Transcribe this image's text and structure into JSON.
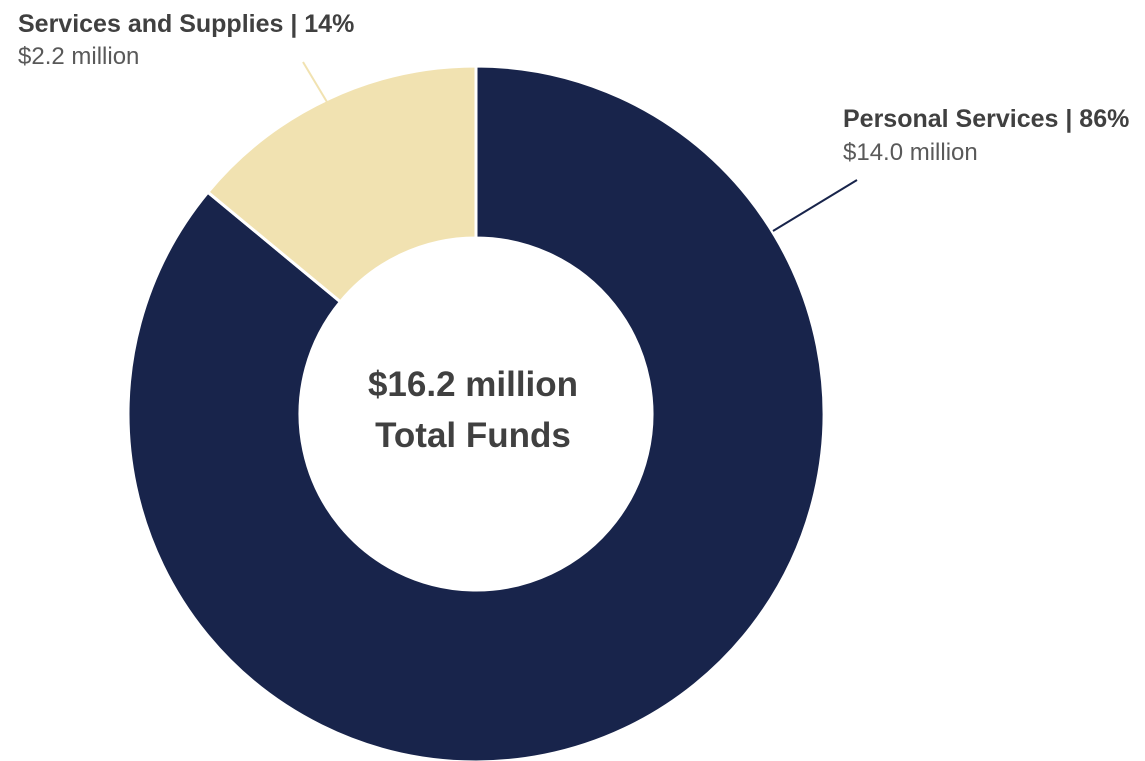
{
  "chart_data": {
    "type": "pie",
    "variant": "donut",
    "slices": [
      {
        "name": "Personal Services",
        "percent": 86,
        "value_label": "$14.0 million",
        "value": 14.0,
        "color": "#18244b"
      },
      {
        "name": "Services and Supplies",
        "percent": 14,
        "value_label": "$2.2 million",
        "value": 2.2,
        "color": "#f1e2b1"
      }
    ],
    "center_label": {
      "line1": "$16.2 million",
      "line2": "Total Funds"
    },
    "label_separator": " | ",
    "leader_color": "#18244b",
    "leader_color_light": "#f1e2b1"
  }
}
